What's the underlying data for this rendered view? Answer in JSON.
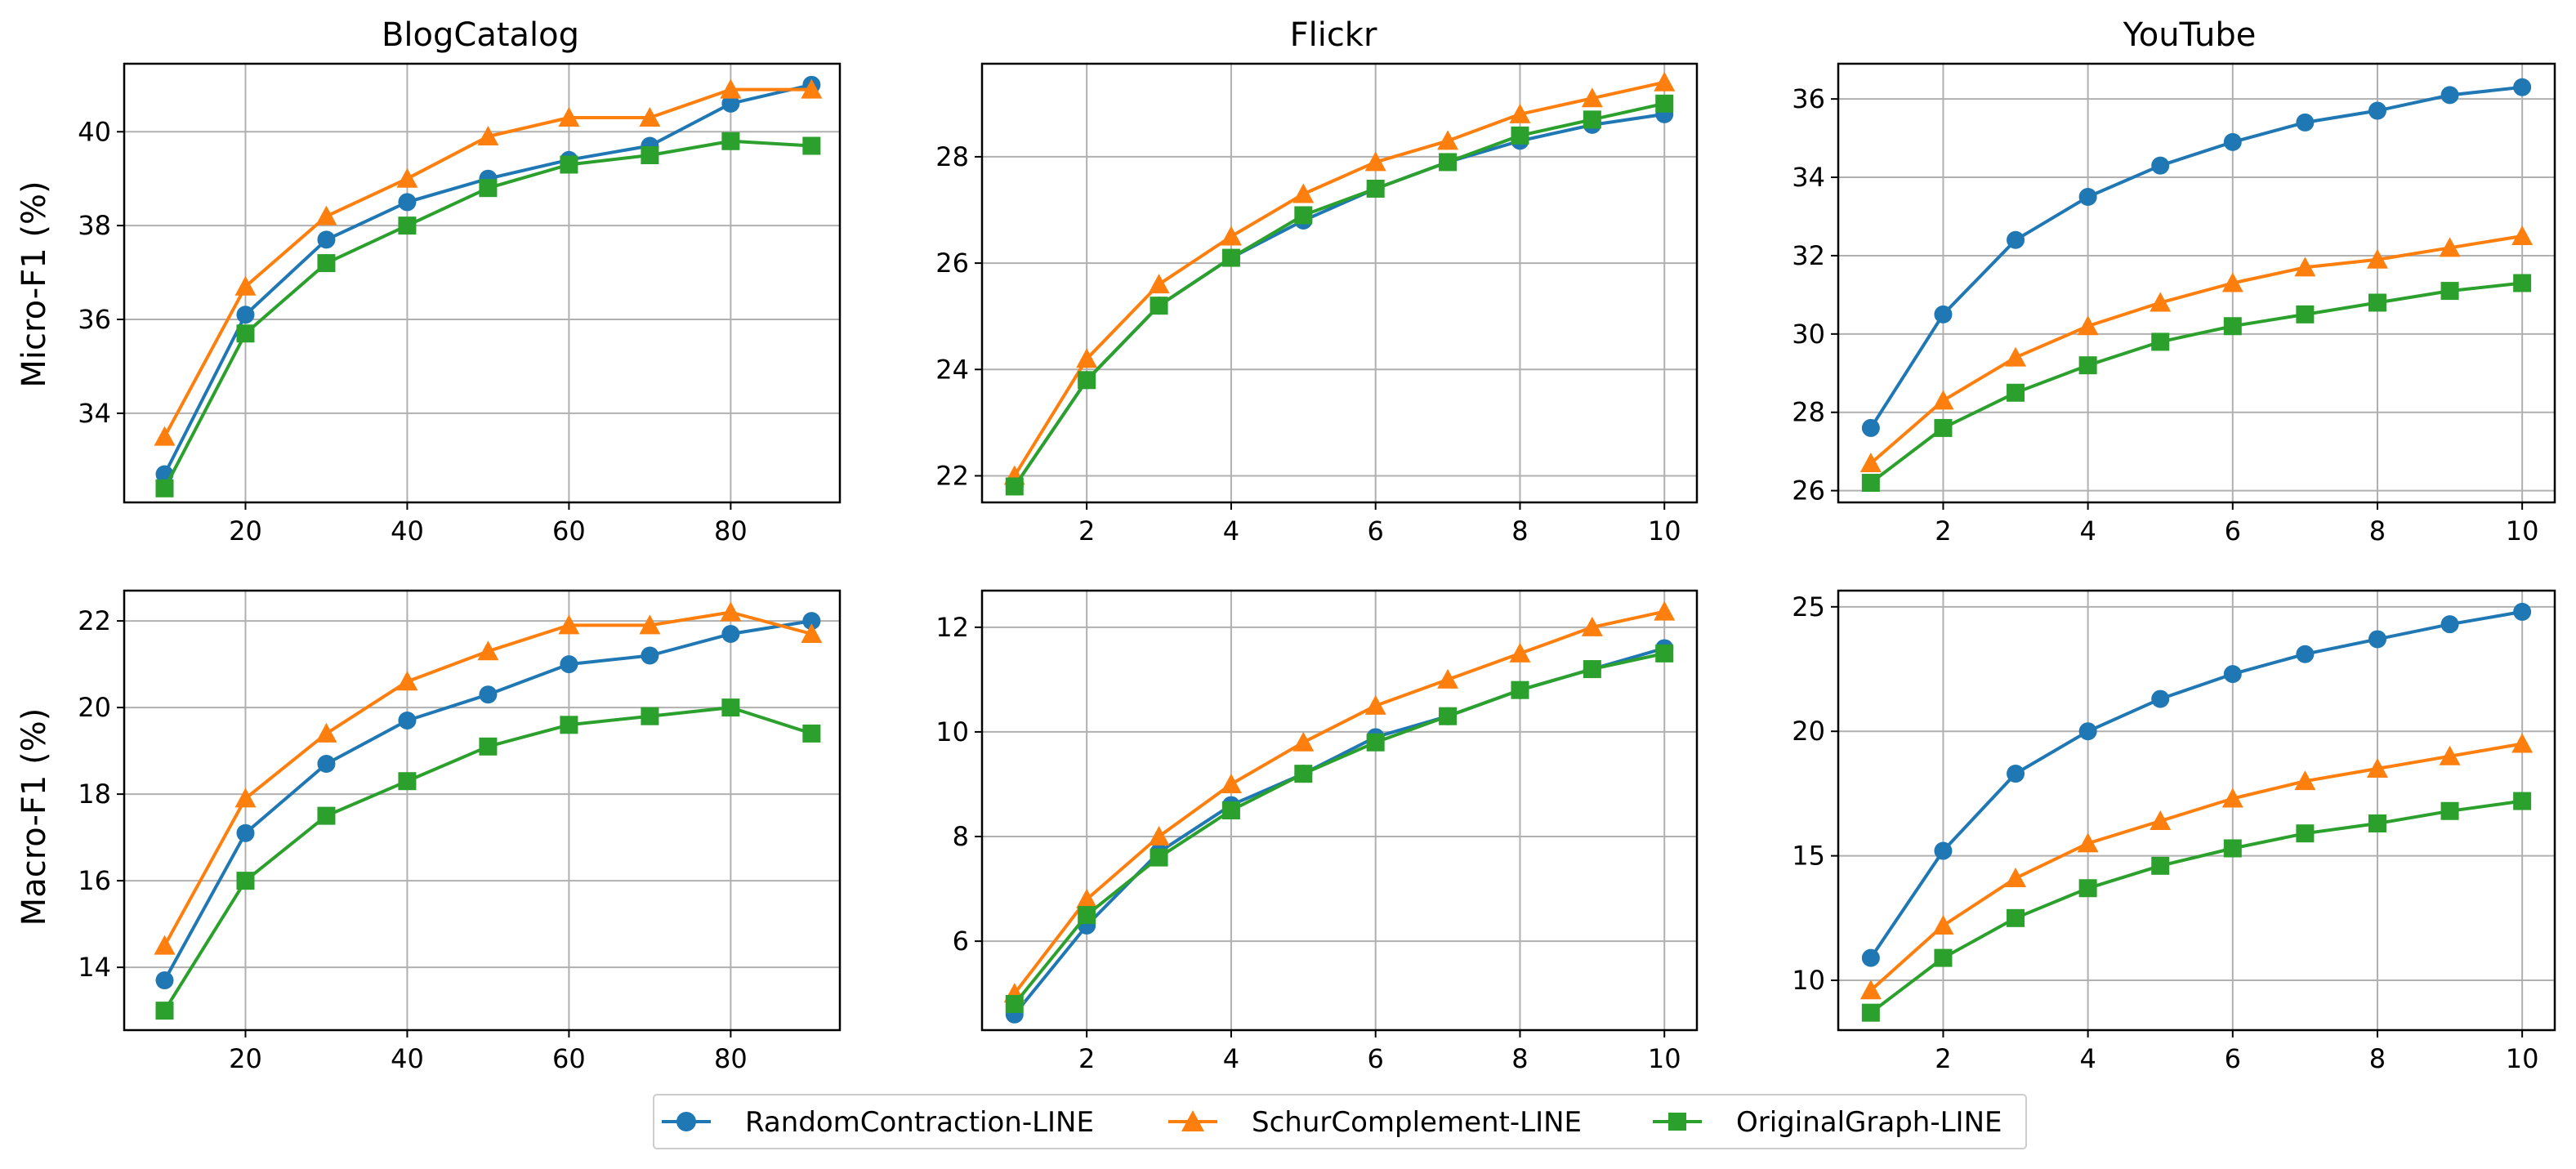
{
  "colors": {
    "RandomContraction-LINE": "#1f77b4",
    "SchurComplement-LINE": "#ff7f0e",
    "OriginalGraph-LINE": "#2ca02c"
  },
  "legend": {
    "position": "bottom-center",
    "entries": [
      {
        "label": "RandomContraction-LINE",
        "marker": "circle"
      },
      {
        "label": "SchurComplement-LINE",
        "marker": "triangle"
      },
      {
        "label": "OriginalGraph-LINE",
        "marker": "square"
      }
    ]
  },
  "row_labels": [
    "Micro-F1 (%)",
    "Macro-F1 (%)"
  ],
  "chart_data": [
    {
      "type": "line",
      "title": "BlogCatalog",
      "ylabel": "Micro-F1 (%)",
      "grid": true,
      "x": [
        10,
        20,
        30,
        40,
        50,
        60,
        70,
        80,
        90
      ],
      "xlim": [
        5,
        93.5
      ],
      "ylim": [
        32.1,
        41.45
      ],
      "xticks": [
        20,
        40,
        60,
        80
      ],
      "yticks": [
        34,
        36,
        38,
        40
      ],
      "series": [
        {
          "name": "RandomContraction-LINE",
          "values": [
            32.7,
            36.1,
            37.7,
            38.5,
            39.0,
            39.4,
            39.7,
            40.6,
            41.0
          ]
        },
        {
          "name": "SchurComplement-LINE",
          "values": [
            33.5,
            36.7,
            38.2,
            39.0,
            39.9,
            40.3,
            40.3,
            40.9,
            40.9
          ]
        },
        {
          "name": "OriginalGraph-LINE",
          "values": [
            32.4,
            35.7,
            37.2,
            38.0,
            38.8,
            39.3,
            39.5,
            39.8,
            39.7
          ]
        }
      ]
    },
    {
      "type": "line",
      "title": "Flickr",
      "ylabel": "",
      "grid": true,
      "x": [
        1,
        2,
        3,
        4,
        5,
        6,
        7,
        8,
        9,
        10
      ],
      "xlim": [
        0.55,
        10.45
      ],
      "ylim": [
        21.5,
        29.75
      ],
      "xticks": [
        2,
        4,
        6,
        8,
        10
      ],
      "yticks": [
        22,
        24,
        26,
        28
      ],
      "series": [
        {
          "name": "RandomContraction-LINE",
          "values": [
            21.8,
            23.8,
            25.2,
            26.1,
            26.8,
            27.4,
            27.9,
            28.3,
            28.6,
            28.8
          ]
        },
        {
          "name": "SchurComplement-LINE",
          "values": [
            22.0,
            24.2,
            25.6,
            26.5,
            27.3,
            27.9,
            28.3,
            28.8,
            29.1,
            29.4
          ]
        },
        {
          "name": "OriginalGraph-LINE",
          "values": [
            21.8,
            23.8,
            25.2,
            26.1,
            26.9,
            27.4,
            27.9,
            28.4,
            28.7,
            29.0
          ]
        }
      ]
    },
    {
      "type": "line",
      "title": "YouTube",
      "ylabel": "",
      "grid": true,
      "x": [
        1,
        2,
        3,
        4,
        5,
        6,
        7,
        8,
        9,
        10
      ],
      "xlim": [
        0.55,
        10.45
      ],
      "ylim": [
        25.7,
        36.9
      ],
      "xticks": [
        2,
        4,
        6,
        8,
        10
      ],
      "yticks": [
        26,
        28,
        30,
        32,
        34,
        36
      ],
      "series": [
        {
          "name": "RandomContraction-LINE",
          "values": [
            27.6,
            30.5,
            32.4,
            33.5,
            34.3,
            34.9,
            35.4,
            35.7,
            36.1,
            36.3
          ]
        },
        {
          "name": "SchurComplement-LINE",
          "values": [
            26.7,
            28.3,
            29.4,
            30.2,
            30.8,
            31.3,
            31.7,
            31.9,
            32.2,
            32.5
          ]
        },
        {
          "name": "OriginalGraph-LINE",
          "values": [
            26.2,
            27.6,
            28.5,
            29.2,
            29.8,
            30.2,
            30.5,
            30.8,
            31.1,
            31.3
          ]
        }
      ]
    },
    {
      "type": "line",
      "title": "",
      "ylabel": "Macro-F1 (%)",
      "grid": true,
      "x": [
        10,
        20,
        30,
        40,
        50,
        60,
        70,
        80,
        90
      ],
      "xlim": [
        5,
        93.5
      ],
      "ylim": [
        12.55,
        22.7
      ],
      "xticks": [
        20,
        40,
        60,
        80
      ],
      "yticks": [
        14,
        16,
        18,
        20,
        22
      ],
      "series": [
        {
          "name": "RandomContraction-LINE",
          "values": [
            13.7,
            17.1,
            18.7,
            19.7,
            20.3,
            21.0,
            21.2,
            21.7,
            22.0
          ]
        },
        {
          "name": "SchurComplement-LINE",
          "values": [
            14.5,
            17.9,
            19.4,
            20.6,
            21.3,
            21.9,
            21.9,
            22.2,
            21.7
          ]
        },
        {
          "name": "OriginalGraph-LINE",
          "values": [
            13.0,
            16.0,
            17.5,
            18.3,
            19.1,
            19.6,
            19.8,
            20.0,
            19.4
          ]
        }
      ]
    },
    {
      "type": "line",
      "title": "",
      "ylabel": "",
      "grid": true,
      "x": [
        1,
        2,
        3,
        4,
        5,
        6,
        7,
        8,
        9,
        10
      ],
      "xlim": [
        0.55,
        10.45
      ],
      "ylim": [
        4.3,
        12.7
      ],
      "xticks": [
        2,
        4,
        6,
        8,
        10
      ],
      "yticks": [
        6,
        8,
        10,
        12
      ],
      "series": [
        {
          "name": "RandomContraction-LINE",
          "values": [
            4.6,
            6.3,
            7.7,
            8.6,
            9.2,
            9.9,
            10.3,
            10.8,
            11.2,
            11.6
          ]
        },
        {
          "name": "SchurComplement-LINE",
          "values": [
            5.0,
            6.8,
            8.0,
            9.0,
            9.8,
            10.5,
            11.0,
            11.5,
            12.0,
            12.3
          ]
        },
        {
          "name": "OriginalGraph-LINE",
          "values": [
            4.8,
            6.5,
            7.6,
            8.5,
            9.2,
            9.8,
            10.3,
            10.8,
            11.2,
            11.5
          ]
        }
      ]
    },
    {
      "type": "line",
      "title": "",
      "ylabel": "",
      "grid": true,
      "x": [
        1,
        2,
        3,
        4,
        5,
        6,
        7,
        8,
        9,
        10
      ],
      "xlim": [
        0.55,
        10.45
      ],
      "ylim": [
        8.0,
        25.65
      ],
      "xticks": [
        2,
        4,
        6,
        8,
        10
      ],
      "yticks": [
        10,
        15,
        20,
        25
      ],
      "series": [
        {
          "name": "RandomContraction-LINE",
          "values": [
            10.9,
            15.2,
            18.3,
            20.0,
            21.3,
            22.3,
            23.1,
            23.7,
            24.3,
            24.8
          ]
        },
        {
          "name": "SchurComplement-LINE",
          "values": [
            9.6,
            12.2,
            14.1,
            15.5,
            16.4,
            17.3,
            18.0,
            18.5,
            19.0,
            19.5
          ]
        },
        {
          "name": "OriginalGraph-LINE",
          "values": [
            8.7,
            10.9,
            12.5,
            13.7,
            14.6,
            15.3,
            15.9,
            16.3,
            16.8,
            17.2
          ]
        }
      ]
    }
  ]
}
